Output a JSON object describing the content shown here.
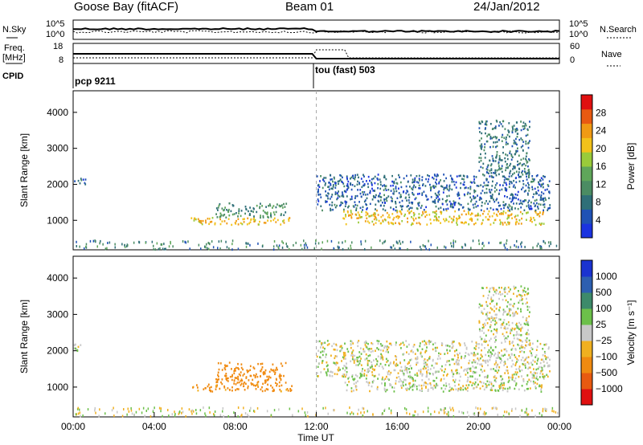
{
  "header": {
    "station": "Goose Bay (fitACF)",
    "beam": "Beam 01",
    "date": "24/Jan/2012"
  },
  "panels": {
    "nsky": {
      "label": "N.Sky",
      "tick_top": "10^5",
      "tick_bottom": "10^0",
      "right_label": "N.Search",
      "right_tick_top": "10^5",
      "right_tick_bottom": "10^0"
    },
    "freq": {
      "label": "Freq.",
      "unit": "[MHz]",
      "tick_top": "18",
      "tick_bottom": "8",
      "right_label": "Nave",
      "right_tick_top": "60",
      "right_tick_bottom": "0"
    },
    "cpid": {
      "label": "CPID",
      "segments": [
        {
          "text": "pcp 9211",
          "start_h": 0
        },
        {
          "text": "tou (fast) 503",
          "start_h": 12
        }
      ]
    }
  },
  "chart_data": [
    {
      "type": "heatmap",
      "name": "power",
      "ylabel": "Slant Range [km]",
      "yticks": [
        1000,
        2000,
        3000,
        4000
      ],
      "ylim": [
        180,
        4600
      ],
      "xlim": [
        0,
        24
      ],
      "colorbar": {
        "label": "Power [dB]",
        "ticks": [
          "4",
          "8",
          "12",
          "16",
          "20",
          "24",
          "28"
        ],
        "colors": [
          "#1a33e0",
          "#1f52b5",
          "#2f6f78",
          "#4b8c63",
          "#5fa65a",
          "#9acb3a",
          "#f2c21a",
          "#f09a14",
          "#e85a12",
          "#e01010"
        ]
      },
      "scatter_regions": [
        {
          "x": [
            0.0,
            0.6
          ],
          "range": [
            2000,
            2200
          ],
          "value": 6
        },
        {
          "x": [
            5.8,
            10.8
          ],
          "range": [
            900,
            1100
          ],
          "value": 20
        },
        {
          "x": [
            7.0,
            10.5
          ],
          "range": [
            1100,
            1500
          ],
          "value": 10
        },
        {
          "x": [
            13.3,
            23.2
          ],
          "range": [
            900,
            1300
          ],
          "value": 20
        },
        {
          "x": [
            12.0,
            23.5
          ],
          "range": [
            1300,
            2300
          ],
          "value": 6
        },
        {
          "x": [
            20.0,
            22.5
          ],
          "range": [
            2300,
            3800
          ],
          "value": 8
        }
      ]
    },
    {
      "type": "heatmap",
      "name": "velocity",
      "ylabel": "Slant Range [km]",
      "yticks": [
        1000,
        2000,
        3000,
        4000
      ],
      "ylim": [
        180,
        4600
      ],
      "xlim": [
        0,
        24
      ],
      "xlabel": "Time UT",
      "xticks": [
        "00:00",
        "04:00",
        "08:00",
        "12:00",
        "16:00",
        "20:00",
        "00:00"
      ],
      "colorbar": {
        "label": "Velocity [m s⁻¹]",
        "ticks": [
          "1000",
          "500",
          "100",
          "25",
          "−25",
          "−100",
          "−500",
          "−1000"
        ],
        "colors": [
          "#1a33d0",
          "#2d5fb0",
          "#3d8a6a",
          "#6cc04a",
          "#c8c8c8",
          "#f0b020",
          "#f08a10",
          "#e85a10",
          "#e01010"
        ]
      },
      "scatter_regions": [
        {
          "x": [
            0.0,
            0.6
          ],
          "range": [
            2000,
            2200
          ],
          "value": 0
        },
        {
          "x": [
            5.8,
            10.8
          ],
          "range": [
            900,
            1100
          ],
          "value": -150
        },
        {
          "x": [
            7.0,
            10.5
          ],
          "range": [
            1100,
            1700
          ],
          "value": -200
        },
        {
          "x": [
            13.3,
            23.2
          ],
          "range": [
            900,
            1300
          ],
          "value": 0
        },
        {
          "x": [
            12.0,
            23.5
          ],
          "range": [
            1300,
            2300
          ],
          "value": 0
        },
        {
          "x": [
            20.0,
            22.5
          ],
          "range": [
            2300,
            3800
          ],
          "value": 0
        }
      ]
    }
  ]
}
